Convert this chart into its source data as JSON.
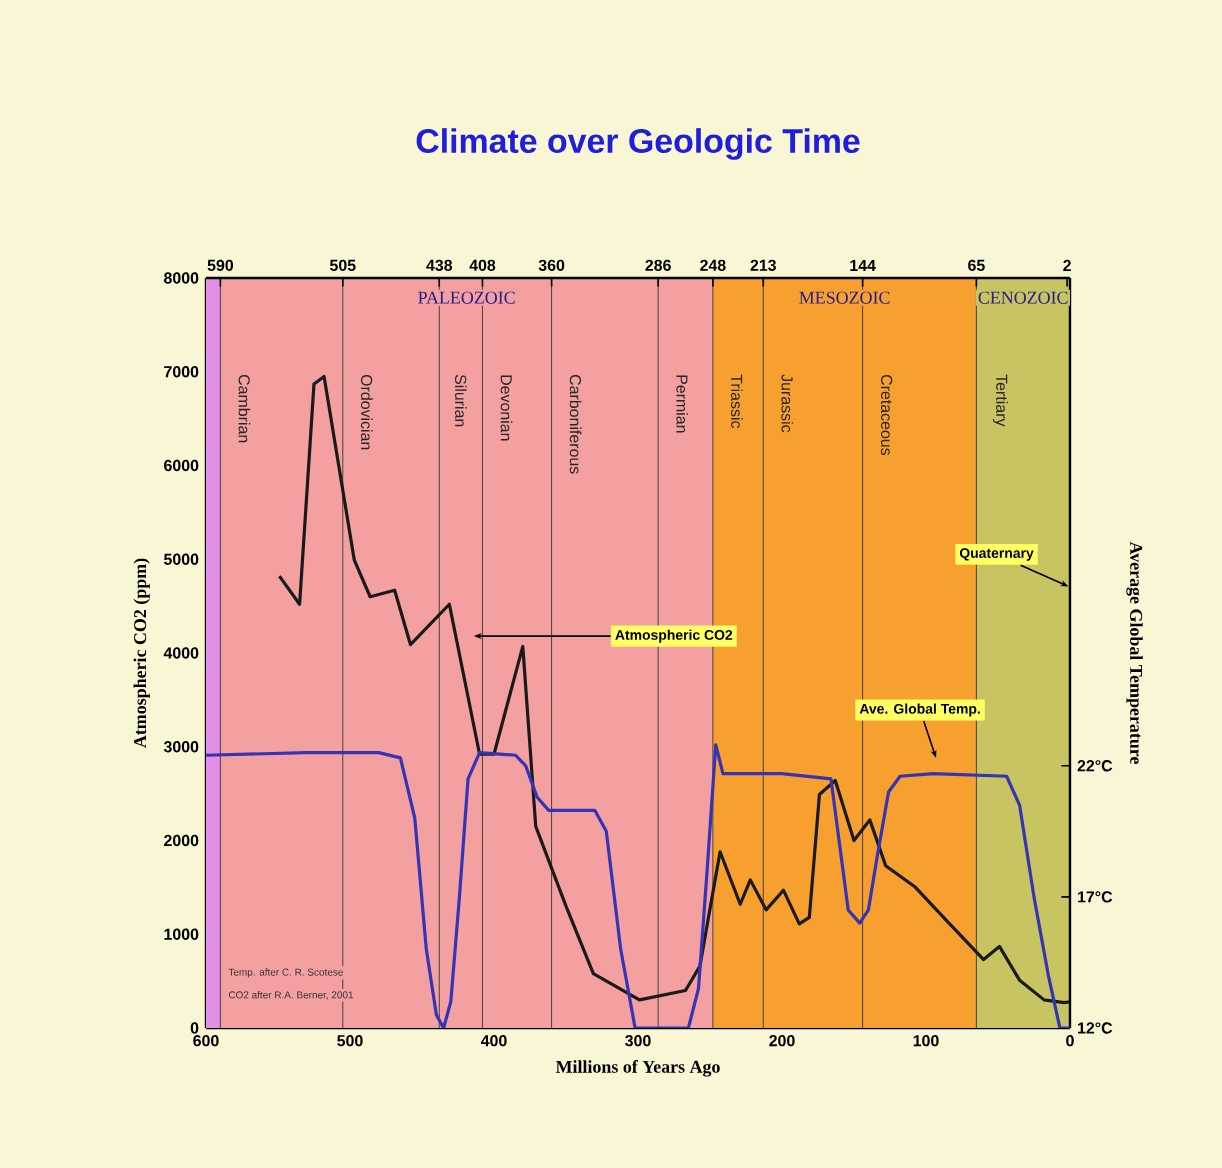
{
  "chart_data": {
    "type": "line",
    "title": "Climate over Geologic Time",
    "xlabel": "Millions of Years Ago",
    "ylabel": "Atmospheric CO2 (ppm)",
    "y2label": "Average Global Temperature",
    "xlim": [
      600,
      0
    ],
    "xticks": [
      600,
      500,
      400,
      300,
      200,
      100,
      0
    ],
    "x2lim": [
      600,
      0
    ],
    "x2ticks": [
      590,
      505,
      438,
      408,
      360,
      286,
      248,
      213,
      144,
      65,
      2
    ],
    "ylim": [
      0,
      8000
    ],
    "yticks": [
      0,
      1000,
      2000,
      3000,
      4000,
      5000,
      6000,
      7000,
      8000
    ],
    "y2lim": [
      12,
      40.6
    ],
    "y2ticks": [
      {
        "value": 12,
        "label": "12°C"
      },
      {
        "value": 17,
        "label": "17°C"
      },
      {
        "value": 22,
        "label": "22°C"
      }
    ],
    "series": [
      {
        "color": "#1a1a1a",
        "x": [
          549,
          535,
          525,
          518,
          497,
          486,
          469,
          458,
          431,
          410,
          400,
          380,
          371,
          350,
          331,
          299,
          267,
          257,
          243,
          229,
          222,
          211,
          199,
          188,
          181,
          174,
          163,
          150,
          139,
          128,
          108,
          86,
          60,
          49,
          35,
          18,
          4,
          0
        ],
        "values": [
          4820,
          4520,
          6870,
          6950,
          4990,
          4600,
          4670,
          4090,
          4520,
          2920,
          2920,
          4070,
          2150,
          1300,
          580,
          300,
          400,
          660,
          1880,
          1320,
          1580,
          1260,
          1470,
          1110,
          1180,
          2490,
          2640,
          2000,
          2220,
          1730,
          1510,
          1150,
          730,
          870,
          510,
          300,
          270,
          280
        ]
      },
      {
        "color": "#3434b4",
        "axis": "y2",
        "x": [
          600,
          530,
          480,
          465,
          455,
          447,
          440,
          435,
          430,
          424,
          418,
          410,
          385,
          378,
          370,
          362,
          330,
          322,
          312,
          302,
          265,
          258,
          252,
          246,
          241,
          200,
          166,
          160,
          154,
          146,
          140,
          134,
          126,
          118,
          95,
          44,
          35,
          25,
          15,
          7,
          0
        ],
        "values": [
          22.4,
          22.5,
          22.5,
          22.3,
          20,
          15,
          12.5,
          12,
          13,
          17,
          21.5,
          22.5,
          22.4,
          22,
          20.8,
          20.3,
          20.3,
          19.5,
          15,
          12,
          12,
          13.5,
          18,
          22.8,
          21.7,
          21.7,
          21.5,
          19,
          16.5,
          16,
          16.5,
          18.5,
          21,
          21.6,
          21.7,
          21.6,
          20.5,
          17,
          14,
          12,
          12
        ]
      }
    ],
    "bands": [
      {
        "axis": "x",
        "from": 600,
        "to": 590,
        "color": "#e48ee8"
      },
      {
        "axis": "x",
        "from": 590,
        "to": 248,
        "label": "PALEOZOIC",
        "color": "#f4a0a0"
      },
      {
        "axis": "x",
        "from": 248,
        "to": 65,
        "label": "MESOZOIC",
        "color": "#f7a030"
      },
      {
        "axis": "x",
        "from": 65,
        "to": 0,
        "label": "CENOZOIC",
        "color": "#c8c462"
      }
    ],
    "ref_lines": [
      {
        "axis": "x",
        "value": 590,
        "label": "Cambrian"
      },
      {
        "axis": "x",
        "value": 505,
        "label": "Ordovician"
      },
      {
        "axis": "x",
        "value": 438,
        "label": "Silurian"
      },
      {
        "axis": "x",
        "value": 408,
        "label": "Devonian"
      },
      {
        "axis": "x",
        "value": 360,
        "label": "Carboniferous"
      },
      {
        "axis": "x",
        "value": 286,
        "label": "Permian"
      },
      {
        "axis": "x",
        "value": 248,
        "label": "Triassic"
      },
      {
        "axis": "x",
        "value": 213,
        "label": "Jurassic"
      },
      {
        "axis": "x",
        "value": 144,
        "label": "Cretaceous"
      },
      {
        "axis": "x",
        "value": 65,
        "label": "Tertiary"
      }
    ],
    "annotations": [
      {
        "text": "Atmospheric CO2",
        "x": 414,
        "y": 4180
      },
      {
        "text": "Ave. Global Temp.",
        "x": 93,
        "y": 2880
      },
      {
        "text": "Quaternary",
        "x": 1,
        "y": 4710
      },
      "Temp. after C. R. Scotese",
      "CO2 after R.A. Berner, 2001"
    ]
  }
}
